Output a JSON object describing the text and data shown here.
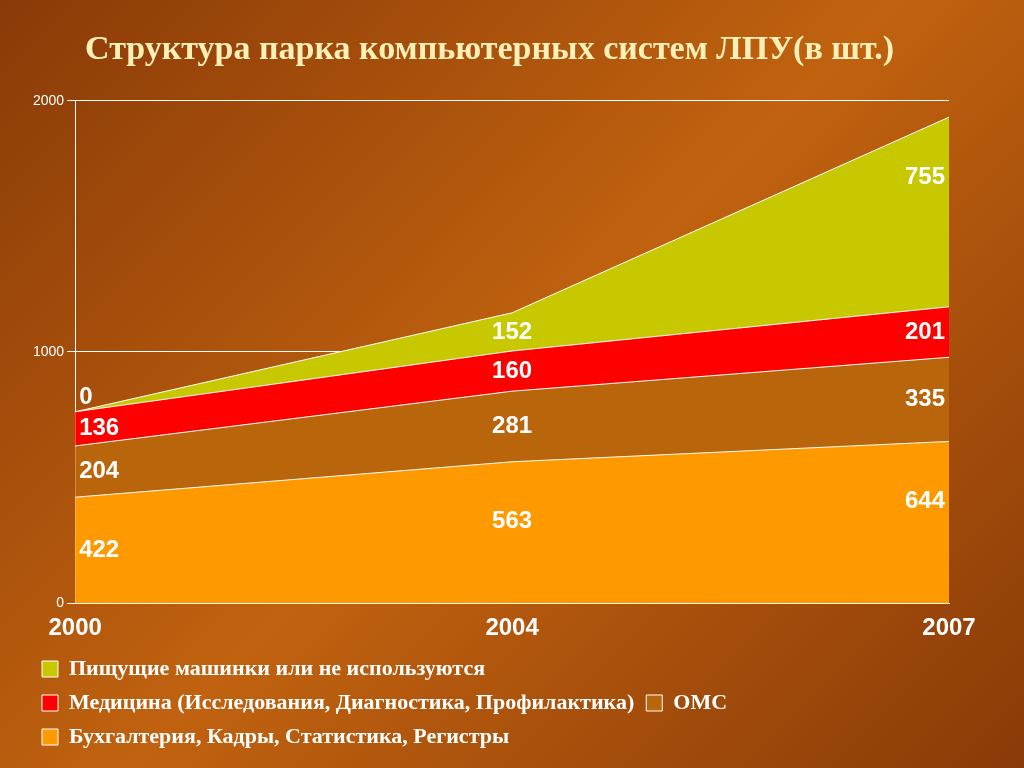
{
  "chart_data": {
    "type": "area",
    "title": "Структура парка компьютерных систем ЛПУ(в шт.)",
    "categories": [
      "2000",
      "2004",
      "2007"
    ],
    "stacked": true,
    "ylim": [
      0,
      2000
    ],
    "yticks": [
      0,
      1000,
      2000
    ],
    "grid": "y",
    "legend": "bottom",
    "data_labels": true,
    "series": [
      {
        "name": "Бухгалтерия, Кадры, Статистика, Регистры",
        "color": "#ff9900",
        "values": [
          422,
          563,
          644
        ]
      },
      {
        "name": "ОМС",
        "color": "#b8650c",
        "values": [
          204,
          281,
          335
        ]
      },
      {
        "name": "Медицина (Исследования, Диагностика, Профилактика)",
        "color": "#ff0000",
        "values": [
          136,
          160,
          201
        ]
      },
      {
        "name": "Пищущие машинки или не используются",
        "color": "#c8c800",
        "values": [
          0,
          152,
          755
        ]
      }
    ]
  }
}
